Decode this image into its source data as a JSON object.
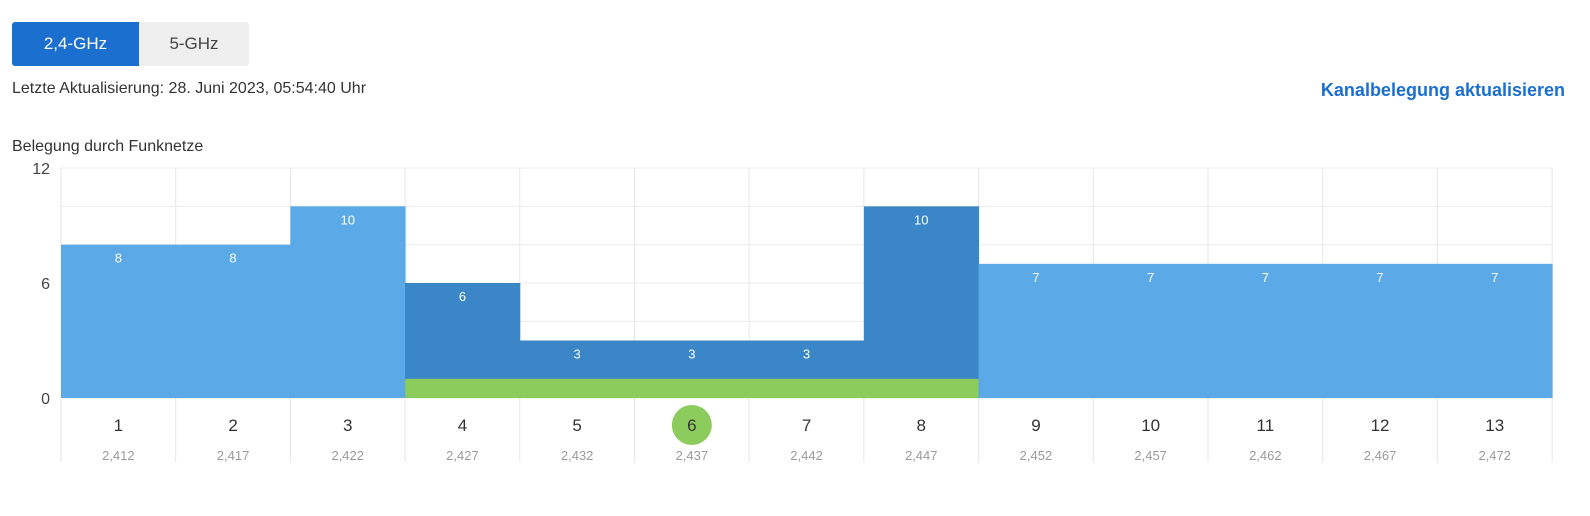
{
  "tabs": [
    {
      "label": "2,4-GHz",
      "active": true
    },
    {
      "label": "5-GHz",
      "active": false
    }
  ],
  "last_update": "Letzte Aktualisierung: 28. Juni 2023, 05:54:40 Uhr",
  "refresh_label": "Kanalbelegung aktualisieren",
  "chart_title": "Belegung durch Funknetze",
  "colors": {
    "accent": "#1a6fcf",
    "bar_light": "#5ba9e6",
    "bar_dark": "#3a86c6",
    "own_network": "#8ccc5c",
    "selected_channel": "#8ccc5c"
  },
  "chart_data": {
    "type": "bar",
    "title": "Belegung durch Funknetze",
    "categories": [
      "1",
      "2",
      "3",
      "4",
      "5",
      "6",
      "7",
      "8",
      "9",
      "10",
      "11",
      "12",
      "13"
    ],
    "frequencies": [
      "2,412",
      "2,417",
      "2,422",
      "2,427",
      "2,432",
      "2,437",
      "2,442",
      "2,447",
      "2,452",
      "2,457",
      "2,462",
      "2,467",
      "2,472"
    ],
    "values": [
      8,
      8,
      10,
      6,
      3,
      3,
      3,
      10,
      7,
      7,
      7,
      7,
      7
    ],
    "highlighted": [
      false,
      false,
      false,
      true,
      true,
      true,
      true,
      true,
      false,
      false,
      false,
      false,
      false
    ],
    "own_network_range": [
      "4",
      "8"
    ],
    "own_network_value": 1,
    "selected_channel": "6",
    "ylim": [
      0,
      12
    ],
    "yticks": [
      0,
      6,
      12
    ],
    "grid": true
  }
}
